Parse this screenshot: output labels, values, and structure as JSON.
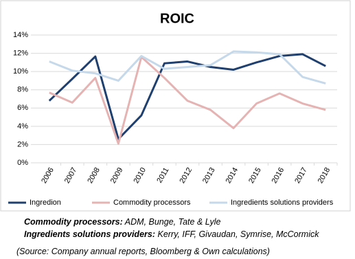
{
  "chart_data": {
    "type": "line",
    "title": "ROIC",
    "categories": [
      "2006",
      "2007",
      "2008",
      "2009",
      "2010",
      "2011",
      "2012",
      "2013",
      "2014",
      "2015",
      "2016",
      "2017",
      "2018"
    ],
    "series": [
      {
        "name": "Ingredion",
        "color": "#1f3f6e",
        "values": [
          6.8,
          9.2,
          11.65,
          2.6,
          5.2,
          10.9,
          11.1,
          10.5,
          10.2,
          11.0,
          11.7,
          11.9,
          10.6
        ]
      },
      {
        "name": "Commodity processors",
        "color": "#e6b3b3",
        "values": [
          7.7,
          6.6,
          9.3,
          2.1,
          11.6,
          9.3,
          6.8,
          5.8,
          3.8,
          6.5,
          7.6,
          6.5,
          5.8
        ]
      },
      {
        "name": "Ingredients solutions providers",
        "color": "#c5d9ea",
        "values": [
          11.1,
          10.1,
          9.8,
          9.0,
          11.7,
          10.3,
          10.5,
          10.7,
          12.2,
          12.1,
          11.9,
          9.4,
          8.7
        ]
      }
    ],
    "ylim": [
      0,
      14
    ],
    "yticks": [
      {
        "value": 0,
        "label": "0%"
      },
      {
        "value": 2,
        "label": "2%"
      },
      {
        "value": 4,
        "label": "4%"
      },
      {
        "value": 6,
        "label": "6%"
      },
      {
        "value": 8,
        "label": "8%"
      },
      {
        "value": 10,
        "label": "10%"
      },
      {
        "value": 12,
        "label": "12%"
      },
      {
        "value": 14,
        "label": "14%"
      }
    ],
    "grid": true,
    "notes": [
      {
        "label": "Commodity processors:",
        "text": "ADM, Bunge, Tate & Lyle"
      },
      {
        "label": "Ingredients solutions providers:",
        "text": "Kerry, IFF, Givaudan, Symrise, McCormick"
      }
    ],
    "source": "(Source: Company annual reports, Bloomberg & Own calculations)"
  }
}
